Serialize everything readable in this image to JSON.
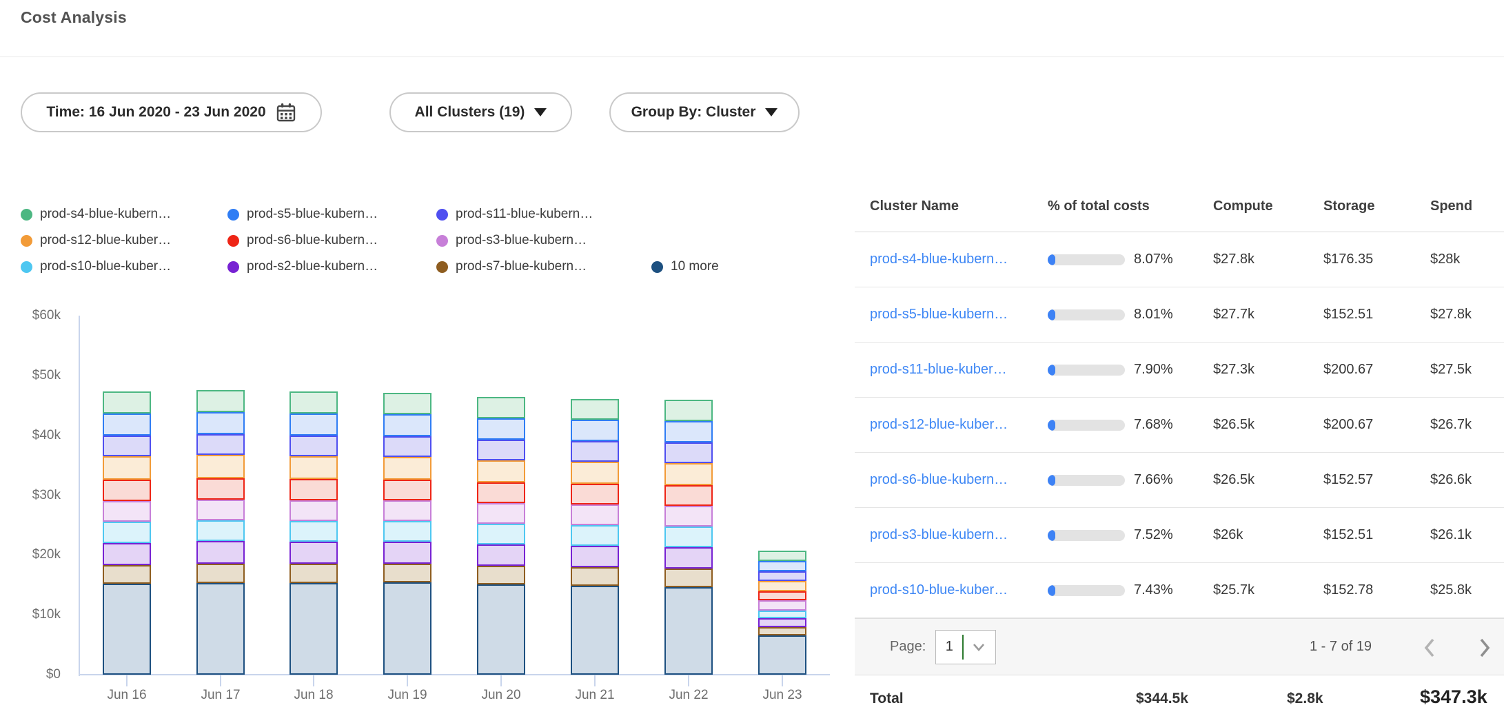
{
  "header": {
    "title": "Cost Analysis"
  },
  "filters": {
    "time": {
      "label": "Time: 16 Jun 2020 - 23 Jun 2020"
    },
    "clusters": {
      "label": "All Clusters (19)"
    },
    "group_by": {
      "label": "Group By: Cluster"
    }
  },
  "chart_data": {
    "type": "bar",
    "stacked": true,
    "title": "",
    "xlabel": "",
    "ylabel": "",
    "unit": "thousand USD per day",
    "ylim": [
      0,
      60
    ],
    "y_ticks": [
      "$60k",
      "$50k",
      "$40k",
      "$30k",
      "$20k",
      "$10k",
      "$0"
    ],
    "grid": false,
    "legend_position": "top",
    "categories": [
      "Jun 16",
      "Jun 17",
      "Jun 18",
      "Jun 19",
      "Jun 20",
      "Jun 21",
      "Jun 22",
      "Jun 23"
    ],
    "series": [
      {
        "name": "prod-s4-blue-kubern…",
        "color": "#4cb782",
        "fill": "#ddf1e4",
        "values": [
          3.7,
          3.7,
          3.7,
          3.6,
          3.6,
          3.5,
          3.6,
          1.7
        ]
      },
      {
        "name": "prod-s5-blue-kubern…",
        "color": "#2f7df4",
        "fill": "#dbe7fb",
        "values": [
          3.7,
          3.7,
          3.7,
          3.7,
          3.6,
          3.6,
          3.6,
          1.7
        ]
      },
      {
        "name": "prod-s11-blue-kubern…",
        "color": "#4f4ff0",
        "fill": "#dcdaf9",
        "values": [
          3.4,
          3.5,
          3.5,
          3.5,
          3.4,
          3.4,
          3.4,
          1.6
        ]
      },
      {
        "name": "prod-s12-blue-kuber…",
        "color": "#f29b38",
        "fill": "#fbecd7",
        "values": [
          3.9,
          3.9,
          3.8,
          3.8,
          3.7,
          3.7,
          3.7,
          1.7
        ]
      },
      {
        "name": "prod-s6-blue-kubern…",
        "color": "#ee2516",
        "fill": "#fadbd6",
        "values": [
          3.6,
          3.6,
          3.6,
          3.5,
          3.5,
          3.5,
          3.5,
          1.5
        ]
      },
      {
        "name": "prod-s3-blue-kubern…",
        "color": "#c77fd8",
        "fill": "#f3e4f7",
        "values": [
          3.4,
          3.5,
          3.5,
          3.4,
          3.4,
          3.4,
          3.4,
          1.7
        ]
      },
      {
        "name": "prod-s10-blue-kuber…",
        "color": "#4ec7f1",
        "fill": "#dcf3fb",
        "values": [
          3.6,
          3.5,
          3.5,
          3.5,
          3.4,
          3.4,
          3.4,
          1.3
        ]
      },
      {
        "name": "prod-s2-blue-kubern…",
        "color": "#7722d3",
        "fill": "#e4d4f6",
        "values": [
          3.7,
          3.8,
          3.7,
          3.7,
          3.6,
          3.6,
          3.6,
          1.5
        ]
      },
      {
        "name": "prod-s7-blue-kubern…",
        "color": "#8e5d20",
        "fill": "#e8decc",
        "values": [
          3.1,
          3.2,
          3.2,
          3.1,
          3.1,
          3.1,
          3.1,
          1.4
        ]
      },
      {
        "name": "10 more",
        "color": "#1d5080",
        "fill": "#cfdbe7",
        "values": [
          15.2,
          15.3,
          15.3,
          15.4,
          15.1,
          14.8,
          14.6,
          6.6
        ]
      }
    ]
  },
  "table": {
    "columns": [
      "Cluster Name",
      "% of total costs",
      "Compute",
      "Storage",
      "Spend"
    ],
    "rows": [
      {
        "name": "prod-s4-blue-kubern…",
        "pct": "8.07%",
        "pct_value": 8.07,
        "compute": "$27.8k",
        "storage": "$176.35",
        "spend": "$28k"
      },
      {
        "name": "prod-s5-blue-kubern…",
        "pct": "8.01%",
        "pct_value": 8.01,
        "compute": "$27.7k",
        "storage": "$152.51",
        "spend": "$27.8k"
      },
      {
        "name": "prod-s11-blue-kuber…",
        "pct": "7.90%",
        "pct_value": 7.9,
        "compute": "$27.3k",
        "storage": "$200.67",
        "spend": "$27.5k"
      },
      {
        "name": "prod-s12-blue-kuber…",
        "pct": "7.68%",
        "pct_value": 7.68,
        "compute": "$26.5k",
        "storage": "$200.67",
        "spend": "$26.7k"
      },
      {
        "name": "prod-s6-blue-kubern…",
        "pct": "7.66%",
        "pct_value": 7.66,
        "compute": "$26.5k",
        "storage": "$152.57",
        "spend": "$26.6k"
      },
      {
        "name": "prod-s3-blue-kubern…",
        "pct": "7.52%",
        "pct_value": 7.52,
        "compute": "$26k",
        "storage": "$152.51",
        "spend": "$26.1k"
      },
      {
        "name": "prod-s10-blue-kuber…",
        "pct": "7.43%",
        "pct_value": 7.43,
        "compute": "$25.7k",
        "storage": "$152.78",
        "spend": "$25.8k"
      }
    ],
    "pagination": {
      "label": "Page:",
      "page": "1",
      "range": "1 - 7 of 19"
    },
    "total": {
      "label": "Total",
      "compute": "$344.5k",
      "storage": "$2.8k",
      "spend": "$347.3k"
    }
  }
}
